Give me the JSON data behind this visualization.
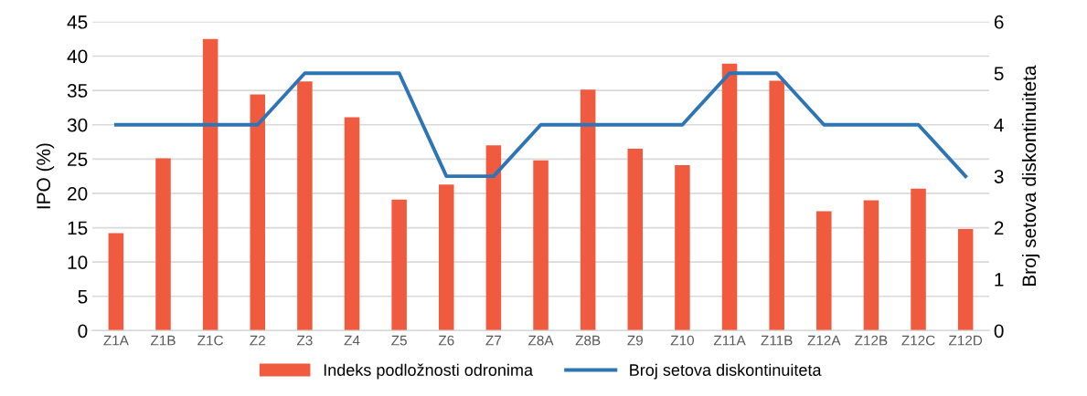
{
  "chart_data": {
    "type": "bar",
    "categories": [
      "Z1A",
      "Z1B",
      "Z1C",
      "Z2",
      "Z3",
      "Z4",
      "Z5",
      "Z6",
      "Z7",
      "Z8A",
      "Z8B",
      "Z9",
      "Z10",
      "Z11A",
      "Z11B",
      "Z12A",
      "Z12B",
      "Z12C",
      "Z12D"
    ],
    "series": [
      {
        "name": "Indeks podložnosti odronima",
        "color": "#f05b3f",
        "values": [
          14.2,
          25.1,
          42.5,
          34.4,
          36.3,
          31.1,
          19.1,
          21.3,
          27.0,
          24.8,
          35.1,
          26.5,
          24.1,
          38.9,
          36.4,
          17.4,
          19.0,
          20.7,
          14.8
        ]
      },
      {
        "name": "Broj setova diskontinuiteta",
        "type": "line",
        "axis": "y2",
        "color": "#2e75b6",
        "values": [
          4,
          4,
          4,
          4,
          5,
          5,
          5,
          3,
          3,
          4,
          4,
          4,
          4,
          5,
          5,
          4,
          4,
          4,
          3
        ]
      }
    ],
    "ylabel": "IPO (%)",
    "y2label": "Broj setova diskontinuiteta",
    "ylim": [
      0,
      45
    ],
    "yticks": [
      0,
      5,
      10,
      15,
      20,
      25,
      30,
      35,
      40,
      45
    ],
    "y2lim": [
      0,
      6
    ],
    "y2ticks": [
      0,
      1,
      2,
      3,
      4,
      5,
      6
    ],
    "grid": "y",
    "legend": "bottom",
    "marker": "none",
    "line_style": "solid"
  }
}
